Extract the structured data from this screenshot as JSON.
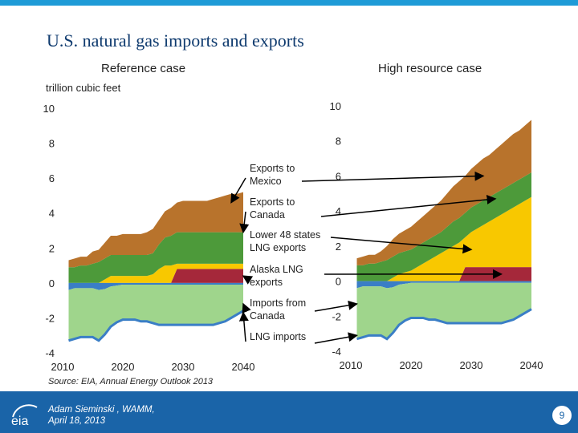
{
  "slide": {
    "title": "U.S. natural gas imports and exports",
    "unit_label": "trillion cubic feet",
    "source": "Source:  EIA, Annual Energy Outlook 2013",
    "author": "Adam Sieminski , WAMM,",
    "date": "April 18, 2013",
    "page_number": "9",
    "logo_text": "eia"
  },
  "colors": {
    "lng_imports": "#3a7ec6",
    "imports_canada": "#9fd58c",
    "alaska_lng": "#a5283a",
    "lower48_lng": "#f8c800",
    "exports_canada": "#4d9a3a",
    "exports_mexico": "#b8732c",
    "axis_text": "#222222",
    "accent": "#1e9bd7",
    "footer": "#1a64a8"
  },
  "chart_data": [
    {
      "type": "area",
      "title": "Reference case",
      "ylabel": "trillion cubic feet",
      "x": [
        2011,
        2012,
        2013,
        2014,
        2015,
        2016,
        2017,
        2018,
        2019,
        2020,
        2021,
        2022,
        2023,
        2024,
        2025,
        2026,
        2027,
        2028,
        2029,
        2030,
        2031,
        2032,
        2033,
        2034,
        2035,
        2036,
        2037,
        2038,
        2039,
        2040
      ],
      "xlim": [
        2010,
        2040
      ],
      "ylim": [
        -4,
        10
      ],
      "xticks": [
        2010,
        2020,
        2030,
        2040
      ],
      "yticks": [
        -4,
        -2,
        0,
        2,
        4,
        6,
        8,
        10
      ],
      "series": [
        {
          "key": "lng_imports",
          "values": [
            -0.4,
            -0.3,
            -0.3,
            -0.3,
            -0.3,
            -0.4,
            -0.35,
            -0.2,
            -0.15,
            -0.1,
            -0.1,
            -0.1,
            -0.1,
            -0.1,
            -0.1,
            -0.1,
            -0.1,
            -0.1,
            -0.1,
            -0.1,
            -0.1,
            -0.1,
            -0.1,
            -0.1,
            -0.1,
            -0.1,
            -0.1,
            -0.1,
            -0.1,
            -0.1
          ]
        },
        {
          "key": "imports_canada",
          "values": [
            -2.9,
            -2.9,
            -2.8,
            -2.8,
            -2.8,
            -2.9,
            -2.6,
            -2.3,
            -2.1,
            -2.0,
            -2.0,
            -2.0,
            -2.1,
            -2.1,
            -2.2,
            -2.3,
            -2.3,
            -2.3,
            -2.3,
            -2.3,
            -2.3,
            -2.3,
            -2.3,
            -2.3,
            -2.3,
            -2.2,
            -2.1,
            -1.9,
            -1.7,
            -1.5
          ]
        },
        {
          "key": "alaska_lng",
          "values": [
            0,
            0,
            0,
            0,
            0,
            0,
            0,
            0,
            0,
            0,
            0,
            0,
            0,
            0,
            0,
            0,
            0,
            0,
            0.8,
            0.8,
            0.8,
            0.8,
            0.8,
            0.8,
            0.8,
            0.8,
            0.8,
            0.8,
            0.8,
            0.8
          ]
        },
        {
          "key": "lower48_lng",
          "values": [
            0,
            0,
            0,
            0,
            0,
            0,
            0.2,
            0.4,
            0.4,
            0.4,
            0.4,
            0.4,
            0.4,
            0.4,
            0.5,
            0.8,
            1.0,
            1.0,
            0.3,
            0.3,
            0.3,
            0.3,
            0.3,
            0.3,
            0.3,
            0.3,
            0.3,
            0.3,
            0.3,
            0.3
          ]
        },
        {
          "key": "exports_canada",
          "values": [
            0.9,
            0.9,
            1.0,
            1.0,
            1.1,
            1.2,
            1.2,
            1.2,
            1.2,
            1.2,
            1.2,
            1.2,
            1.2,
            1.2,
            1.2,
            1.4,
            1.6,
            1.7,
            1.8,
            1.8,
            1.8,
            1.8,
            1.8,
            1.8,
            1.8,
            1.8,
            1.8,
            1.8,
            1.8,
            1.8
          ]
        },
        {
          "key": "exports_mexico",
          "values": [
            0.4,
            0.5,
            0.5,
            0.5,
            0.7,
            0.7,
            0.9,
            1.1,
            1.1,
            1.2,
            1.2,
            1.2,
            1.2,
            1.3,
            1.4,
            1.4,
            1.5,
            1.6,
            1.7,
            1.8,
            1.8,
            1.8,
            1.8,
            1.8,
            1.9,
            2.0,
            2.1,
            2.2,
            2.2,
            2.3
          ]
        }
      ]
    },
    {
      "type": "area",
      "title": "High resource case",
      "x": [
        2011,
        2012,
        2013,
        2014,
        2015,
        2016,
        2017,
        2018,
        2019,
        2020,
        2021,
        2022,
        2023,
        2024,
        2025,
        2026,
        2027,
        2028,
        2029,
        2030,
        2031,
        2032,
        2033,
        2034,
        2035,
        2036,
        2037,
        2038,
        2039,
        2040
      ],
      "xlim": [
        2010,
        2040
      ],
      "ylim": [
        -4,
        10
      ],
      "xticks": [
        2010,
        2020,
        2030,
        2040
      ],
      "yticks": [
        -4,
        -2,
        0,
        2,
        4,
        6,
        8,
        10
      ],
      "series": [
        {
          "key": "lng_imports",
          "values": [
            -0.4,
            -0.3,
            -0.3,
            -0.3,
            -0.3,
            -0.4,
            -0.35,
            -0.2,
            -0.15,
            -0.1,
            -0.1,
            -0.1,
            -0.1,
            -0.1,
            -0.1,
            -0.1,
            -0.1,
            -0.1,
            -0.1,
            -0.1,
            -0.1,
            -0.1,
            -0.1,
            -0.1,
            -0.1,
            -0.1,
            -0.1,
            -0.1,
            -0.1,
            -0.1
          ]
        },
        {
          "key": "imports_canada",
          "values": [
            -2.9,
            -2.9,
            -2.8,
            -2.8,
            -2.8,
            -2.9,
            -2.6,
            -2.3,
            -2.1,
            -2.0,
            -2.0,
            -2.0,
            -2.1,
            -2.1,
            -2.2,
            -2.3,
            -2.3,
            -2.3,
            -2.3,
            -2.3,
            -2.3,
            -2.3,
            -2.3,
            -2.3,
            -2.3,
            -2.2,
            -2.1,
            -1.9,
            -1.7,
            -1.5
          ]
        },
        {
          "key": "alaska_lng",
          "values": [
            0,
            0,
            0,
            0,
            0,
            0,
            0,
            0,
            0,
            0,
            0,
            0,
            0,
            0,
            0,
            0,
            0,
            0,
            0.8,
            0.8,
            0.8,
            0.8,
            0.8,
            0.8,
            0.8,
            0.8,
            0.8,
            0.8,
            0.8,
            0.8
          ]
        },
        {
          "key": "lower48_lng",
          "values": [
            0,
            0,
            0,
            0,
            0,
            0,
            0.2,
            0.4,
            0.5,
            0.6,
            0.8,
            1.0,
            1.2,
            1.4,
            1.6,
            1.8,
            2.0,
            2.2,
            1.7,
            2.0,
            2.2,
            2.4,
            2.6,
            2.8,
            3.0,
            3.2,
            3.4,
            3.6,
            3.8,
            4.0
          ]
        },
        {
          "key": "exports_canada",
          "values": [
            0.9,
            0.9,
            1.0,
            1.0,
            1.1,
            1.2,
            1.2,
            1.2,
            1.2,
            1.2,
            1.2,
            1.2,
            1.2,
            1.2,
            1.2,
            1.3,
            1.4,
            1.4,
            1.4,
            1.4,
            1.4,
            1.4,
            1.4,
            1.4,
            1.4,
            1.4,
            1.4,
            1.4,
            1.4,
            1.4
          ]
        },
        {
          "key": "exports_mexico",
          "values": [
            0.4,
            0.5,
            0.5,
            0.5,
            0.6,
            0.8,
            1.0,
            1.1,
            1.2,
            1.3,
            1.4,
            1.5,
            1.6,
            1.7,
            1.8,
            1.9,
            2.0,
            2.1,
            2.1,
            2.2,
            2.3,
            2.4,
            2.4,
            2.5,
            2.6,
            2.7,
            2.8,
            2.8,
            2.9,
            3.0
          ]
        }
      ]
    }
  ],
  "annotations": [
    {
      "key": "exports_mexico",
      "text": "Exports to Mexico",
      "line1": "Exports to",
      "line2": "Mexico"
    },
    {
      "key": "exports_canada",
      "text": "Exports to Canada",
      "line1": "Exports to",
      "line2": "Canada"
    },
    {
      "key": "lower48_lng",
      "text": "Lower 48 states LNG exports",
      "line1": "Lower 48 states",
      "line2": "LNG exports"
    },
    {
      "key": "alaska_lng",
      "text": "Alaska LNG exports",
      "line1": "Alaska LNG",
      "line2": "exports"
    },
    {
      "key": "imports_canada",
      "text": "Imports from Canada",
      "line1": "Imports from",
      "line2": "Canada"
    },
    {
      "key": "lng_imports",
      "text": "LNG imports",
      "line1": "LNG imports",
      "line2": ""
    }
  ]
}
